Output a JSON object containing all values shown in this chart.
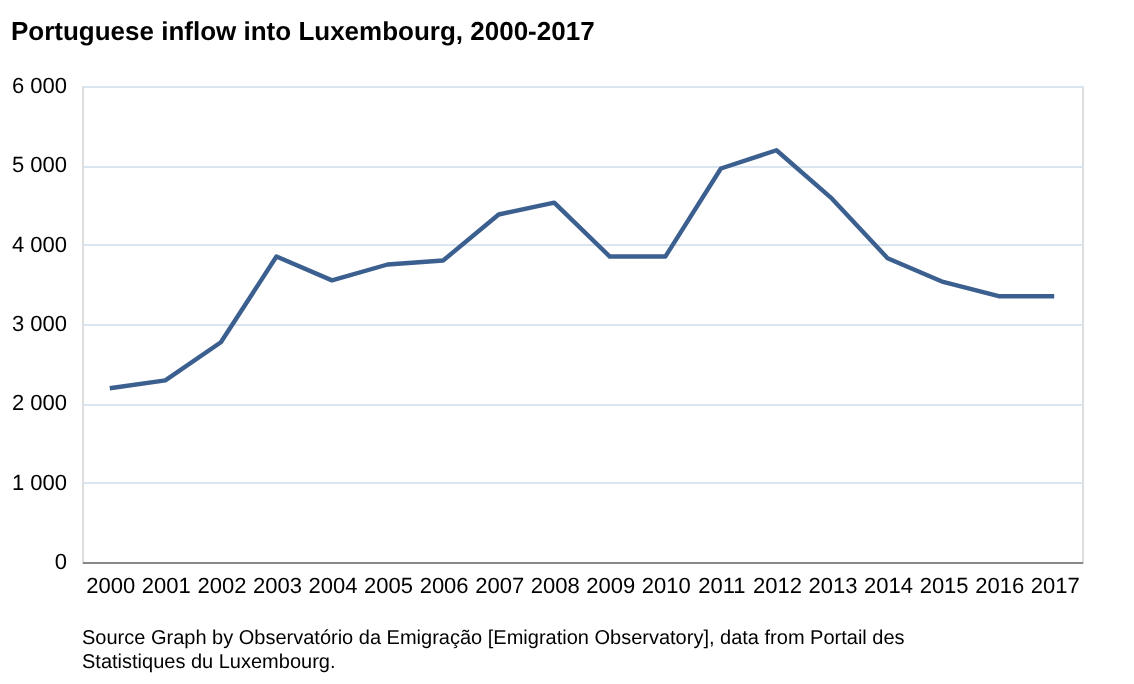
{
  "chart_data": {
    "type": "line",
    "title": "Portuguese  inflow into Luxembourg, 2000-2017",
    "categories": [
      "2000",
      "2001",
      "2002",
      "2003",
      "2004",
      "2005",
      "2006",
      "2007",
      "2008",
      "2009",
      "2010",
      "2011",
      "2012",
      "2013",
      "2014",
      "2015",
      "2016",
      "2017"
    ],
    "series": [
      {
        "color": "#3b5f8f",
        "values": [
          2190,
          2290,
          2770,
          3850,
          3550,
          3750,
          3800,
          4380,
          4530,
          3850,
          3850,
          4960,
          5190,
          4580,
          3830,
          3530,
          3350,
          3350
        ]
      }
    ],
    "ylim": [
      0,
      6000
    ],
    "yticks": [
      0,
      {
        "value": 1000,
        "label": "1 000"
      },
      {
        "value": 2000,
        "label": "2 000"
      },
      {
        "value": 3000,
        "label": "3 000"
      },
      {
        "value": 4000,
        "label": "4 000"
      },
      {
        "value": 5000,
        "label": "5 000"
      },
      {
        "value": 6000,
        "label": "6 000"
      }
    ],
    "grid": "y",
    "marker": "none",
    "line_style": "solid",
    "annotations": [
      "Source  Graph by Observatório da Emigração [Emigration Observatory], data from Portail des Statistiques du Luxembourg."
    ]
  }
}
